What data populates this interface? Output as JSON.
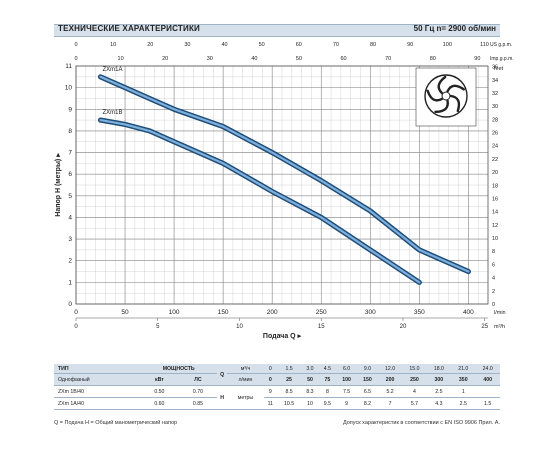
{
  "header": {
    "title": "ТЕХНИЧЕСКИЕ ХАРАКТЕРИСТИКИ",
    "speed": "50 Гц    n= 2900 об/мин"
  },
  "colors": {
    "curve": "#1f4e79",
    "grid": "#b9b9b9",
    "header_bg": "#d6e0ea"
  },
  "chart_data": {
    "type": "line",
    "ylabel": "Напор Н (метры)",
    "xlabel": "Подача Q",
    "x_unit_bottom": "l/min",
    "x_unit_bottom2": "m³/h",
    "x_unit_top": "US g.p.m.",
    "x_unit_top2": "Imp.g.p.m.",
    "y_unit_right": "feet",
    "x_ticks": [
      0,
      50,
      100,
      150,
      200,
      250,
      300,
      350,
      400
    ],
    "x_ticks_m3h": [
      0,
      5,
      10,
      15,
      20,
      25
    ],
    "x_ticks_usgpm": [
      0,
      10,
      20,
      30,
      40,
      50,
      60,
      70,
      80,
      90,
      100,
      110
    ],
    "x_ticks_impgpm": [
      0,
      10,
      20,
      30,
      40,
      50,
      60,
      70,
      80,
      90
    ],
    "y_ticks": [
      0,
      1,
      2,
      3,
      4,
      5,
      6,
      7,
      8,
      9,
      10,
      11
    ],
    "y_ticks_feet": [
      0,
      2,
      4,
      6,
      8,
      10,
      12,
      14,
      16,
      18,
      20,
      22,
      24,
      26,
      28,
      30,
      32,
      34,
      36
    ],
    "xlim": [
      0,
      420
    ],
    "ylim": [
      0,
      11
    ],
    "series": [
      {
        "name": "ZXm1A",
        "x": [
          25,
          50,
          75,
          100,
          150,
          200,
          250,
          300,
          350,
          400
        ],
        "y": [
          10.5,
          10,
          9.5,
          9,
          8.2,
          7,
          5.7,
          4.3,
          2.5,
          1.5
        ]
      },
      {
        "name": "ZXm1B",
        "x": [
          25,
          50,
          75,
          100,
          150,
          200,
          250,
          300,
          350
        ],
        "y": [
          8.5,
          8.3,
          8,
          7.5,
          6.5,
          5.2,
          4,
          2.5,
          1
        ]
      }
    ]
  },
  "table": {
    "type_label": "ТИП",
    "phase_label": "Однофазный",
    "power_label": "МОЩНОСТЬ",
    "kw": "кВт",
    "hp": "ЛС",
    "q_label": "Q",
    "h_label": "H",
    "m3h_label": "м³/ч",
    "lmin_label": "л/мин",
    "h_unit": "метры",
    "flow_m3h": [
      "0",
      "1.5",
      "3.0",
      "4.5",
      "6.0",
      "9.0",
      "12.0",
      "15.0",
      "18.0",
      "21.0",
      "24.0"
    ],
    "flow_lmin": [
      "0",
      "25",
      "50",
      "75",
      "100",
      "150",
      "200",
      "250",
      "300",
      "350",
      "400"
    ],
    "rows": [
      {
        "model": "ZXm 1B/40",
        "kw": "0.50",
        "hp": "0.70",
        "h": [
          "9",
          "8.5",
          "8.3",
          "8",
          "7.5",
          "6.5",
          "5.2",
          "4",
          "2.5",
          "1",
          ""
        ]
      },
      {
        "model": "ZXm 1A/40",
        "kw": "0.60",
        "hp": "0.85",
        "h": [
          "11",
          "10.5",
          "10",
          "9.5",
          "9",
          "8.2",
          "7",
          "5.7",
          "4.3",
          "2.5",
          "1.5"
        ]
      }
    ]
  },
  "footer": {
    "left": "Q = Подача  H = Общий манометрический напор",
    "right": "Допуск характеристик в соответствии с EN ISO 9906 Прил. A."
  }
}
